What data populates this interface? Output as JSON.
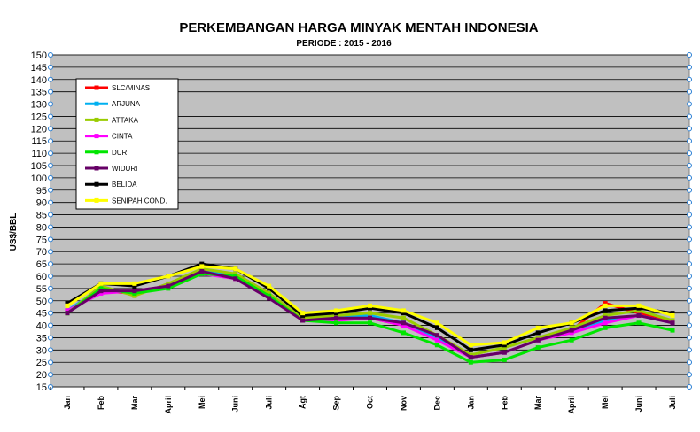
{
  "chart_data": {
    "type": "line",
    "title": "PERKEMBANGAN HARGA MINYAK MENTAH INDONESIA",
    "subtitle": "PERIODE : 2015 - 2016",
    "xlabel": "",
    "ylabel": "US$/BBL",
    "ylim": [
      15,
      150
    ],
    "y_ticks": [
      15,
      20,
      25,
      30,
      35,
      40,
      45,
      50,
      55,
      60,
      65,
      70,
      75,
      80,
      85,
      90,
      95,
      100,
      105,
      110,
      115,
      120,
      125,
      130,
      135,
      140,
      145,
      150
    ],
    "categories": [
      "Jan",
      "Feb",
      "Mar",
      "April",
      "Mei",
      "Juni",
      "Juli",
      "Agt",
      "Sep",
      "Oct",
      "Nov",
      "Dec",
      "Jan",
      "Feb",
      "Mar",
      "April",
      "Mei",
      "Juni",
      "Juli"
    ],
    "grid": true,
    "legend_position": "top-left",
    "background": "#c0c0c0",
    "series": [
      {
        "name": "SLC/MINAS",
        "color": "#ff0000",
        "values": [
          46,
          54,
          53,
          56,
          62,
          60,
          52,
          42,
          43,
          43,
          40,
          35,
          27,
          29,
          34,
          38,
          49,
          45,
          41
        ]
      },
      {
        "name": "ARJUNA",
        "color": "#00b0f0",
        "values": [
          46,
          55,
          53,
          56,
          62,
          60,
          52,
          42,
          43,
          44,
          41,
          35,
          27,
          29,
          34,
          38,
          42,
          44,
          41
        ]
      },
      {
        "name": "ATTAKA",
        "color": "#99cc00",
        "values": [
          45,
          56,
          52,
          57,
          63,
          61,
          53,
          43,
          44,
          45,
          43,
          36,
          28,
          31,
          35,
          39,
          44,
          46,
          42
        ]
      },
      {
        "name": "CINTA",
        "color": "#ff00ff",
        "values": [
          46,
          53,
          54,
          56,
          61,
          59,
          51,
          42,
          42,
          43,
          40,
          34,
          27,
          29,
          34,
          37,
          41,
          44,
          41
        ]
      },
      {
        "name": "DURI",
        "color": "#00e600",
        "values": [
          45,
          55,
          53,
          55,
          61,
          60,
          52,
          42,
          41,
          41,
          37,
          32,
          25,
          26,
          31,
          34,
          39,
          41,
          38
        ]
      },
      {
        "name": "WIDURI",
        "color": "#660066",
        "values": [
          45,
          54,
          54,
          56,
          62,
          59,
          51,
          42,
          43,
          43,
          41,
          36,
          27,
          29,
          34,
          38,
          43,
          44,
          41
        ]
      },
      {
        "name": "BELIDA",
        "color": "#000000",
        "values": [
          49,
          57,
          56,
          60,
          65,
          63,
          55,
          44,
          45,
          47,
          45,
          39,
          30,
          32,
          37,
          41,
          46,
          47,
          45
        ]
      },
      {
        "name": "SENIPAH COND.",
        "color": "#ffff00",
        "values": [
          48,
          57,
          57,
          60,
          64,
          63,
          56,
          45,
          46,
          48,
          46,
          41,
          32,
          33,
          39,
          41,
          48,
          48,
          44
        ]
      }
    ]
  }
}
